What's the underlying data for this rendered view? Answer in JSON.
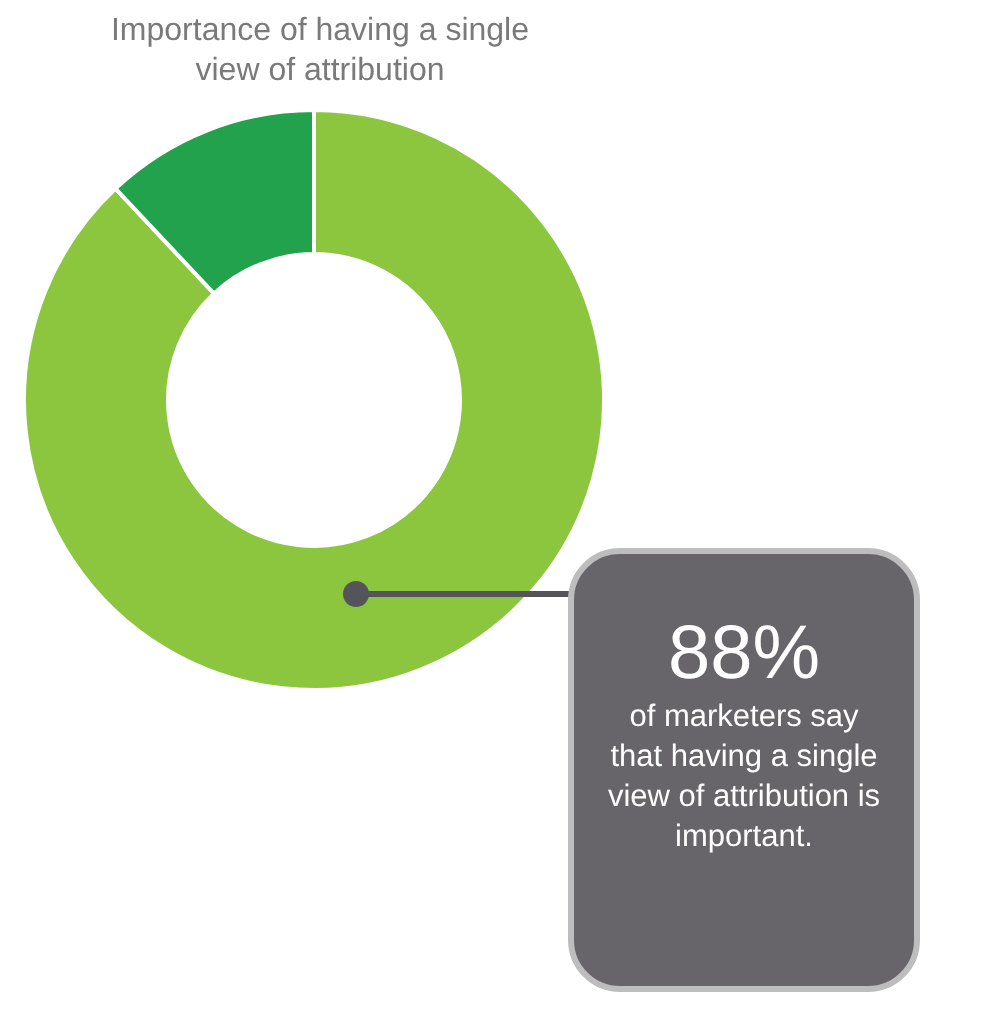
{
  "chart_data": {
    "type": "donut",
    "title": "Importance of having a single view of attribution",
    "categories": [
      null,
      null
    ],
    "values": [
      88,
      12
    ],
    "colors": [
      "#8cc63f",
      "#23a24d"
    ],
    "annotations": [
      "88%",
      "of marketers say that having a single view of attribution is important."
    ]
  }
}
